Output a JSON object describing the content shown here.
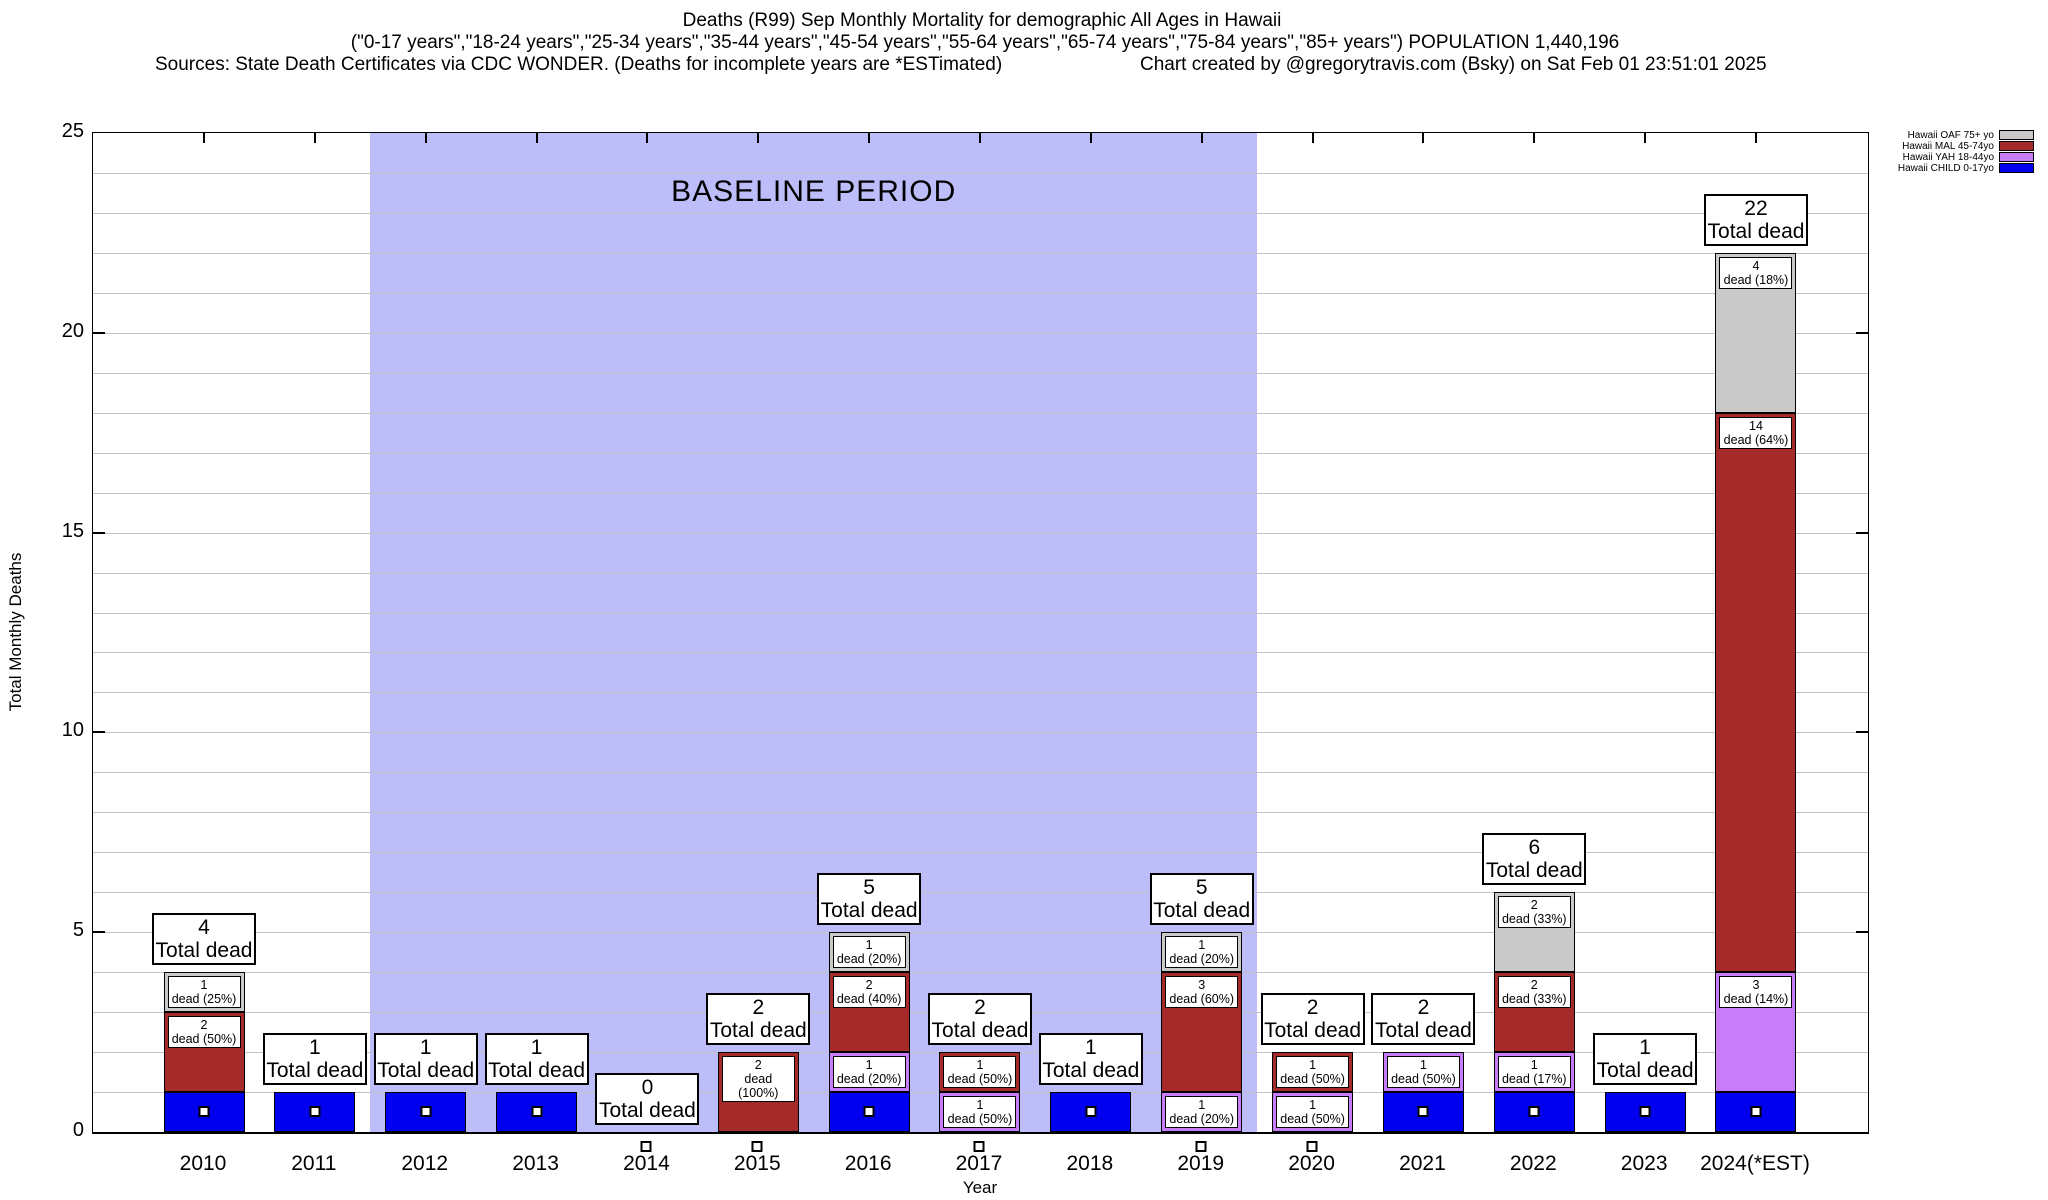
{
  "title": {
    "line1": "Deaths (R99) Sep Monthly Mortality for demographic All Ages in Hawaii",
    "line2": "(\"0-17 years\",\"18-24 years\",\"25-34 years\",\"35-44 years\",\"45-54 years\",\"55-64 years\",\"65-74 years\",\"75-84 years\",\"85+ years\") POPULATION 1,440,196",
    "line3_left": "Sources: State Death Certificates via CDC WONDER. (Deaths for incomplete years are *ESTimated)",
    "line3_right": "Chart created by @gregorytravis.com (Bsky) on Sat Feb 01 23:51:01 2025"
  },
  "axes": {
    "y_label": "Total Monthly Deaths",
    "x_label": "Year",
    "y_ticks": [
      0,
      5,
      10,
      15,
      20,
      25
    ],
    "y_max": 25
  },
  "baseline_band": {
    "label": "BASELINE PERIOD",
    "start_year": "2012",
    "end_year": "2019",
    "color": "#bdbdfa"
  },
  "chart_data": {
    "type": "bar",
    "stacked": true,
    "title": "Deaths (R99) Sep Monthly Mortality for demographic All Ages in Hawaii",
    "xlabel": "Year",
    "ylabel": "Total Monthly Deaths",
    "ylim": [
      0,
      25
    ],
    "grid": "minor horizontal every 1 unit",
    "legend_position": "top-right outside plot",
    "total_label_word": "Total dead",
    "segment_label_word": "dead",
    "categories": [
      "2010",
      "2011",
      "2012",
      "2013",
      "2014",
      "2015",
      "2016",
      "2017",
      "2018",
      "2019",
      "2020",
      "2021",
      "2022",
      "2023",
      "2024(*EST)"
    ],
    "totals": [
      4,
      1,
      1,
      1,
      0,
      2,
      5,
      2,
      1,
      5,
      2,
      2,
      6,
      1,
      22
    ],
    "series": [
      {
        "key": "OAF",
        "name": "Hawaii OAF 75+ yo",
        "color": "#c9c9c9",
        "values": [
          1,
          0,
          0,
          0,
          0,
          0,
          1,
          0,
          0,
          1,
          0,
          0,
          2,
          0,
          4
        ]
      },
      {
        "key": "MAL",
        "name": "Hawaii MAL 45-74yo",
        "color": "#a52a2a",
        "values": [
          2,
          0,
          0,
          0,
          0,
          2,
          2,
          1,
          0,
          3,
          1,
          0,
          2,
          0,
          14
        ]
      },
      {
        "key": "YAH",
        "name": "Hawaii YAH 18-44yo",
        "color": "#c77cf8",
        "values": [
          0,
          0,
          0,
          0,
          0,
          0,
          1,
          1,
          0,
          1,
          1,
          1,
          1,
          0,
          3
        ]
      },
      {
        "key": "CHILD",
        "name": "Hawaii CHILD 0-17yo",
        "color": "#0000ee",
        "values": [
          1,
          1,
          1,
          1,
          0,
          0,
          1,
          0,
          1,
          0,
          0,
          1,
          1,
          1,
          1
        ]
      }
    ],
    "bars": [
      {
        "year": "2010",
        "total": 4,
        "marker": "in-bar",
        "segments": [
          {
            "series": "CHILD",
            "value": 1
          },
          {
            "series": "MAL",
            "value": 2,
            "pct": "50%"
          },
          {
            "series": "OAF",
            "value": 1,
            "pct": "25%"
          }
        ]
      },
      {
        "year": "2011",
        "total": 1,
        "marker": "in-bar",
        "segments": [
          {
            "series": "CHILD",
            "value": 1
          }
        ]
      },
      {
        "year": "2012",
        "total": 1,
        "marker": "in-bar",
        "segments": [
          {
            "series": "CHILD",
            "value": 1
          }
        ]
      },
      {
        "year": "2013",
        "total": 1,
        "marker": "in-bar",
        "segments": [
          {
            "series": "CHILD",
            "value": 1
          }
        ]
      },
      {
        "year": "2014",
        "total": 0,
        "marker": "below-axis",
        "segments": []
      },
      {
        "year": "2015",
        "total": 2,
        "marker": "below-axis",
        "segments": [
          {
            "series": "MAL",
            "value": 2,
            "pct": "100%"
          }
        ]
      },
      {
        "year": "2016",
        "total": 5,
        "marker": "in-bar",
        "segments": [
          {
            "series": "CHILD",
            "value": 1
          },
          {
            "series": "YAH",
            "value": 1,
            "pct": "20%"
          },
          {
            "series": "MAL",
            "value": 2,
            "pct": "40%"
          },
          {
            "series": "OAF",
            "value": 1,
            "pct": "20%"
          }
        ]
      },
      {
        "year": "2017",
        "total": 2,
        "marker": "below-axis",
        "segments": [
          {
            "series": "YAH",
            "value": 1,
            "pct": "50%"
          },
          {
            "series": "MAL",
            "value": 1,
            "pct": "50%"
          }
        ]
      },
      {
        "year": "2018",
        "total": 1,
        "marker": "in-bar",
        "segments": [
          {
            "series": "CHILD",
            "value": 1
          }
        ]
      },
      {
        "year": "2019",
        "total": 5,
        "marker": "below-axis",
        "segments": [
          {
            "series": "YAH",
            "value": 1,
            "pct": "20%"
          },
          {
            "series": "MAL",
            "value": 3,
            "pct": "60%"
          },
          {
            "series": "OAF",
            "value": 1,
            "pct": "20%"
          }
        ]
      },
      {
        "year": "2020",
        "total": 2,
        "marker": "below-axis",
        "segments": [
          {
            "series": "YAH",
            "value": 1,
            "pct": "50%"
          },
          {
            "series": "MAL",
            "value": 1,
            "pct": "50%"
          }
        ]
      },
      {
        "year": "2021",
        "total": 2,
        "marker": "in-bar",
        "segments": [
          {
            "series": "CHILD",
            "value": 1
          },
          {
            "series": "YAH",
            "value": 1,
            "pct": "50%"
          }
        ]
      },
      {
        "year": "2022",
        "total": 6,
        "marker": "in-bar",
        "segments": [
          {
            "series": "CHILD",
            "value": 1
          },
          {
            "series": "YAH",
            "value": 1,
            "pct": "17%"
          },
          {
            "series": "MAL",
            "value": 2,
            "pct": "33%"
          },
          {
            "series": "OAF",
            "value": 2,
            "pct": "33%"
          }
        ]
      },
      {
        "year": "2023",
        "total": 1,
        "marker": "in-bar",
        "segments": [
          {
            "series": "CHILD",
            "value": 1
          }
        ]
      },
      {
        "year": "2024(*EST)",
        "total": 22,
        "marker": "in-bar",
        "segments": [
          {
            "series": "CHILD",
            "value": 1
          },
          {
            "series": "YAH",
            "value": 3,
            "pct": "14%"
          },
          {
            "series": "MAL",
            "value": 14,
            "pct": "64%"
          },
          {
            "series": "OAF",
            "value": 4,
            "pct": "18%"
          }
        ]
      }
    ]
  }
}
